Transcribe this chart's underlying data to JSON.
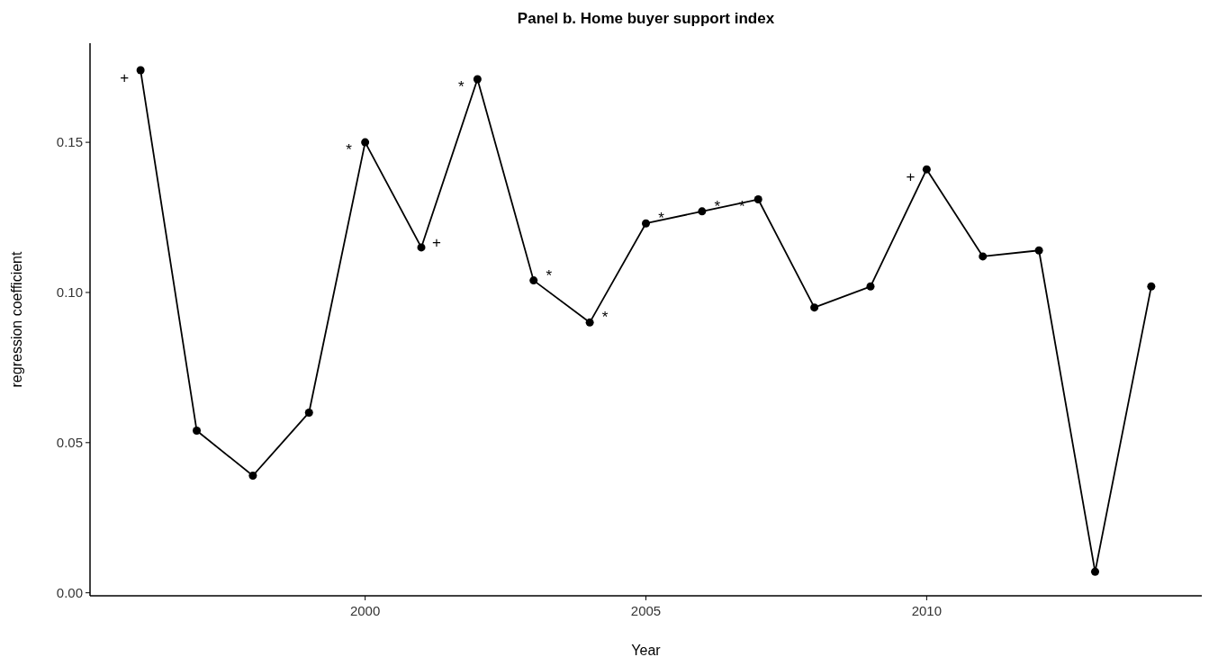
{
  "chart_data": {
    "type": "line",
    "title": "Panel b. Home buyer support index",
    "xlabel": "Year",
    "ylabel": "regression coefficient",
    "x": [
      1996,
      1997,
      1998,
      1999,
      2000,
      2001,
      2002,
      2003,
      2004,
      2005,
      2006,
      2007,
      2008,
      2009,
      2010,
      2011,
      2012,
      2013,
      2014
    ],
    "series": [
      {
        "color": "#000000",
        "values": [
          0.174,
          0.054,
          0.039,
          0.06,
          0.15,
          0.115,
          0.171,
          0.104,
          0.09,
          0.123,
          0.127,
          0.131,
          0.095,
          0.102,
          0.141,
          0.112,
          0.114,
          0.007,
          0.102
        ]
      }
    ],
    "xlim": [
      1995.1,
      2014.9
    ],
    "ylim": [
      -0.001,
      0.183
    ],
    "xticks": [
      2000,
      2005,
      2010
    ],
    "yticks": [
      {
        "value": 0,
        "label": "0.00"
      },
      {
        "value": 0.05,
        "label": "0.05"
      },
      {
        "value": 0.1,
        "label": "0.10"
      },
      {
        "value": 0.15,
        "label": "0.15"
      }
    ],
    "marker": "circle",
    "line_style": "solid",
    "grid": false,
    "annotations": [
      {
        "text": "+",
        "x": 1996,
        "y": 0.174
      },
      {
        "text": "*",
        "x": 2000,
        "y": 0.15
      },
      {
        "text": "+",
        "x": 2001,
        "y": 0.115
      },
      {
        "text": "*",
        "x": 2002,
        "y": 0.171
      },
      {
        "text": "*",
        "x": 2003,
        "y": 0.104
      },
      {
        "text": "*",
        "x": 2004,
        "y": 0.09
      },
      {
        "text": "*",
        "x": 2005,
        "y": 0.123
      },
      {
        "text": "*",
        "x": 2006,
        "y": 0.127
      },
      {
        "text": "*",
        "x": 2007,
        "y": 0.131
      },
      {
        "text": "+",
        "x": 2010,
        "y": 0.141
      }
    ]
  }
}
